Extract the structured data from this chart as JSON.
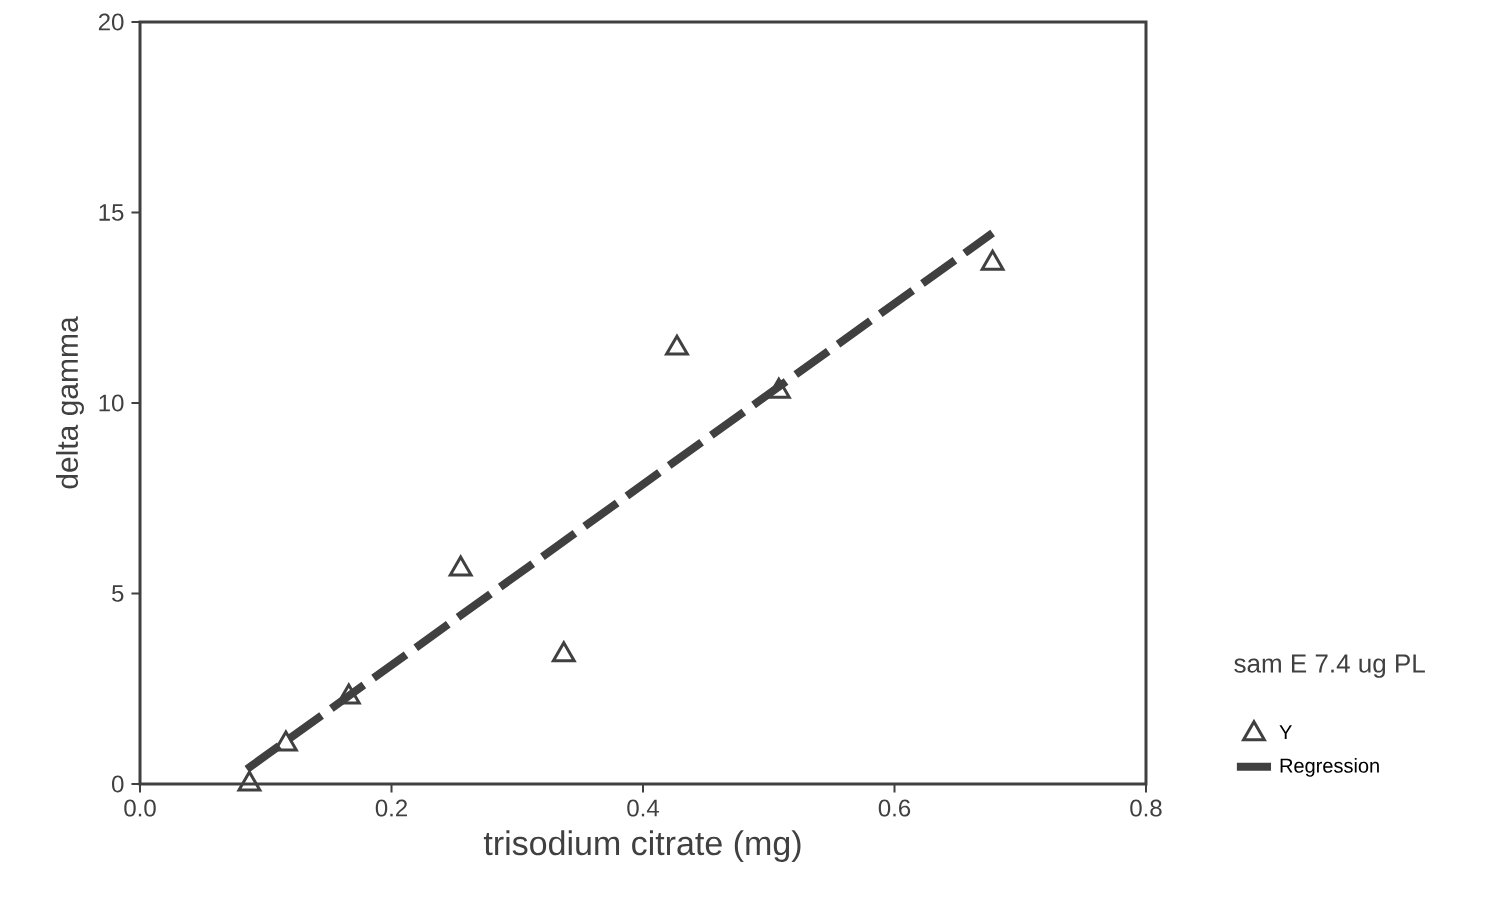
{
  "chart_data": {
    "type": "scatter",
    "xlabel": "trisodium citrate (mg)",
    "ylabel": "delta gamma",
    "legend_title": "sam E 7.4 ug PL",
    "legend": "right",
    "xlim": [
      0,
      0.8
    ],
    "ylim": [
      0,
      20
    ],
    "xticks": [
      {
        "value": 0,
        "label": "0.0"
      },
      {
        "value": 0.2,
        "label": "0.2"
      },
      {
        "value": 0.4,
        "label": "0.4"
      },
      {
        "value": 0.6,
        "label": "0.6"
      },
      {
        "value": 0.8,
        "label": "0.8"
      }
    ],
    "yticks": [
      0,
      5,
      10,
      15,
      20
    ],
    "series": [
      {
        "name": "Y",
        "marker": "triangle",
        "color": "#404040",
        "x": [
          0.087,
          0.116,
          0.166,
          0.255,
          0.337,
          0.427,
          0.508,
          0.678
        ],
        "values": [
          0,
          1.05,
          2.28,
          5.64,
          3.39,
          11.44,
          10.31,
          13.67
        ]
      },
      {
        "name": "Regression",
        "type": "line",
        "line_style": "dashed",
        "marker": "none",
        "color": "#404040",
        "x": [
          0.085,
          0.678
        ],
        "values": [
          0.39,
          14.46
        ]
      }
    ]
  }
}
